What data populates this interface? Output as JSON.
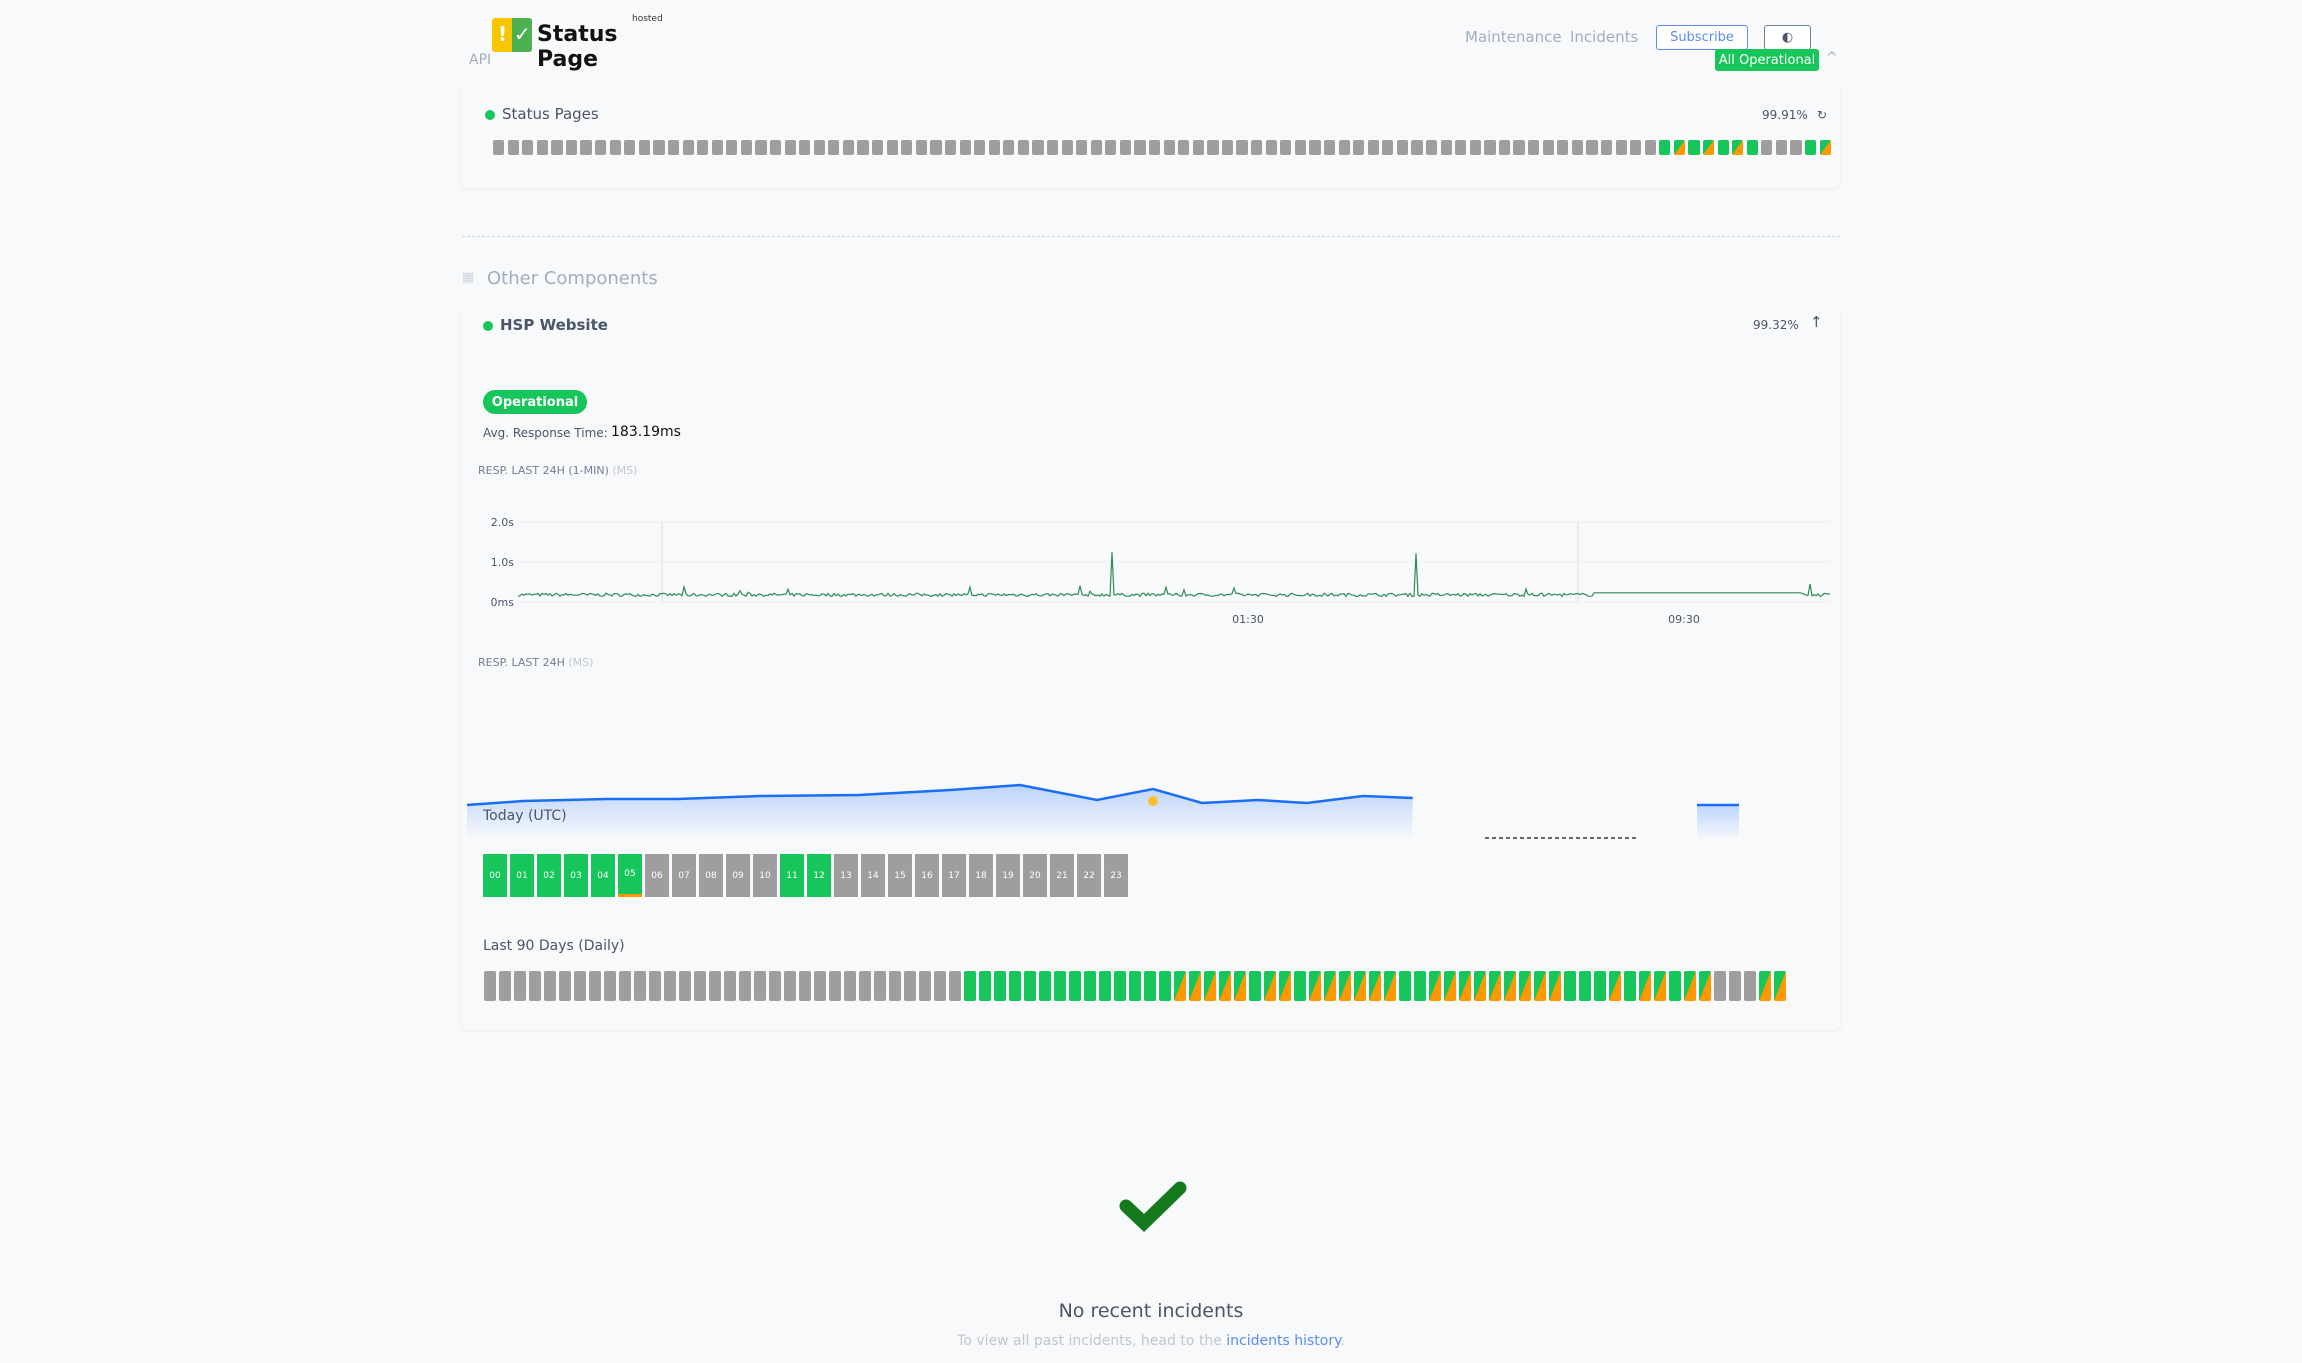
{
  "header": {
    "logo_text": "Status Page",
    "logo_sub": "hosted",
    "api_label": "API",
    "nav": [
      "Maintenance",
      "Incidents"
    ],
    "subscribe": "Subscribe",
    "theme_icon": "half-circle-icon",
    "overall_status": "All Operational"
  },
  "status_pages": {
    "name": "Status Pages",
    "uptime": "99.91%",
    "bars": "nnnnnnnnnnnnnnnnnnnnnnnnnnnnnnnnnnnnnnnnnnnnnnnnnnnnnnnnnnnnnnnnnnnnnnnnnnnnnnnngmgmgmgnnngm"
  },
  "section_title": "Other Components",
  "component": {
    "name": "HSP Website",
    "uptime": "99.32%",
    "status": "Operational",
    "avg_label": "Avg. Response Time:",
    "avg_value": "183.19ms",
    "chart1_label": "RESP. LAST 24H (1-MIN)",
    "chart1_unit": "(MS)",
    "chart2_label": "RESP. LAST 24H",
    "chart2_unit": "(MS)",
    "today_label": "Today (UTC)",
    "hours": [
      "00",
      "01",
      "02",
      "03",
      "04",
      "05",
      "06",
      "07",
      "08",
      "09",
      "10",
      "11",
      "12",
      "13",
      "14",
      "15",
      "16",
      "17",
      "18",
      "19",
      "20",
      "21",
      "22",
      "23"
    ],
    "hour_status": "gggggGnnnnnggnnnnnnnnnnn",
    "days_label": "Last 90 Days (Daily)",
    "day_bars": "nnnnnnnnnnnnnnnnnnnnnnnnnnnnnnnnggggggggggggggmmmmmgmmgmmmmmmggmmmmmmmmmgggmgmmgmmnnnmm"
  },
  "chart_data": {
    "type": "line",
    "y_ticks": [
      "2.0s",
      "1.0s",
      "0ms"
    ],
    "ylim": [
      0,
      2000
    ],
    "x_ticks": [
      "01:30",
      "09:30"
    ],
    "baseline_ms": 180,
    "spikes_ms": [
      1250,
      1220
    ],
    "line_color": "#2e8b57"
  },
  "incidents": {
    "title": "No recent incidents",
    "text": "To view all past incidents, head to the ",
    "link": "incidents history",
    "end": "."
  }
}
